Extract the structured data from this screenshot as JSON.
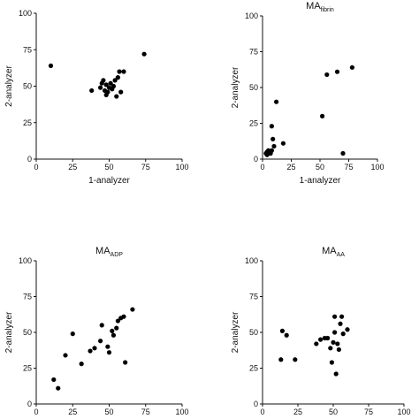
{
  "chart_data": [
    {
      "type": "scatter",
      "title": "",
      "title_sub": "",
      "xlabel": "1-analyzer",
      "ylabel": "2-analyzer",
      "xlim": [
        0,
        100
      ],
      "ylim": [
        0,
        100
      ],
      "xticks": [
        "0",
        "25",
        "50",
        "75",
        "100"
      ],
      "yticks": [
        "0",
        "25",
        "50",
        "75",
        "100"
      ],
      "points": [
        [
          10,
          64
        ],
        [
          74,
          72
        ],
        [
          38,
          47
        ],
        [
          44,
          49
        ],
        [
          45,
          52
        ],
        [
          46,
          54
        ],
        [
          47,
          47
        ],
        [
          48,
          51
        ],
        [
          48,
          44
        ],
        [
          49,
          46
        ],
        [
          50,
          49
        ],
        [
          51,
          52
        ],
        [
          52,
          48
        ],
        [
          53,
          50
        ],
        [
          54,
          54
        ],
        [
          55,
          43
        ],
        [
          56,
          56
        ],
        [
          57,
          60
        ],
        [
          58,
          46
        ],
        [
          60,
          60
        ]
      ]
    },
    {
      "type": "scatter",
      "title": "MA",
      "title_sub": "fibrin",
      "xlabel": "1-analyzer",
      "ylabel": "2-analyzer",
      "xlim": [
        0,
        100
      ],
      "ylim": [
        0,
        100
      ],
      "xticks": [
        "0",
        "25",
        "50",
        "75",
        "100"
      ],
      "yticks": [
        "0",
        "25",
        "50",
        "75",
        "100"
      ],
      "points": [
        [
          3,
          4
        ],
        [
          4,
          5
        ],
        [
          4,
          3
        ],
        [
          5,
          4
        ],
        [
          5,
          6
        ],
        [
          6,
          5
        ],
        [
          7,
          4
        ],
        [
          8,
          23
        ],
        [
          8,
          6
        ],
        [
          9,
          14
        ],
        [
          10,
          9
        ],
        [
          12,
          40
        ],
        [
          18,
          11
        ],
        [
          52,
          30
        ],
        [
          56,
          59
        ],
        [
          65,
          61
        ],
        [
          70,
          4
        ],
        [
          78,
          64
        ]
      ]
    },
    {
      "type": "scatter",
      "title": "MA",
      "title_sub": "ADP",
      "xlabel": "",
      "ylabel": "2-analyzer",
      "xlim": [
        0,
        100
      ],
      "ylim": [
        0,
        100
      ],
      "xticks": [
        "0",
        "25",
        "50",
        "75",
        "100"
      ],
      "yticks": [
        "0",
        "25",
        "50",
        "75",
        "100"
      ],
      "points": [
        [
          12,
          17
        ],
        [
          15,
          11
        ],
        [
          20,
          34
        ],
        [
          25,
          49
        ],
        [
          31,
          28
        ],
        [
          37,
          37
        ],
        [
          40,
          39
        ],
        [
          44,
          44
        ],
        [
          45,
          55
        ],
        [
          49,
          40
        ],
        [
          50,
          36
        ],
        [
          52,
          51
        ],
        [
          53,
          48
        ],
        [
          55,
          53
        ],
        [
          56,
          58
        ],
        [
          58,
          60
        ],
        [
          60,
          61
        ],
        [
          61,
          29
        ],
        [
          66,
          66
        ]
      ]
    },
    {
      "type": "scatter",
      "title": "MA",
      "title_sub": "AA",
      "xlabel": "",
      "ylabel": "2-analyzer",
      "xlim": [
        0,
        100
      ],
      "ylim": [
        0,
        100
      ],
      "xticks": [
        "0",
        "25",
        "50",
        "75",
        "100"
      ],
      "yticks": [
        "0",
        "25",
        "50",
        "75",
        "100"
      ],
      "points": [
        [
          13,
          31
        ],
        [
          14,
          51
        ],
        [
          17,
          48
        ],
        [
          23,
          31
        ],
        [
          38,
          42
        ],
        [
          41,
          45
        ],
        [
          44,
          46
        ],
        [
          46,
          46
        ],
        [
          48,
          39
        ],
        [
          49,
          29
        ],
        [
          50,
          43
        ],
        [
          51,
          50
        ],
        [
          51,
          61
        ],
        [
          52,
          21
        ],
        [
          53,
          42
        ],
        [
          54,
          38
        ],
        [
          55,
          56
        ],
        [
          56,
          61
        ],
        [
          57,
          49
        ],
        [
          60,
          52
        ]
      ]
    }
  ]
}
